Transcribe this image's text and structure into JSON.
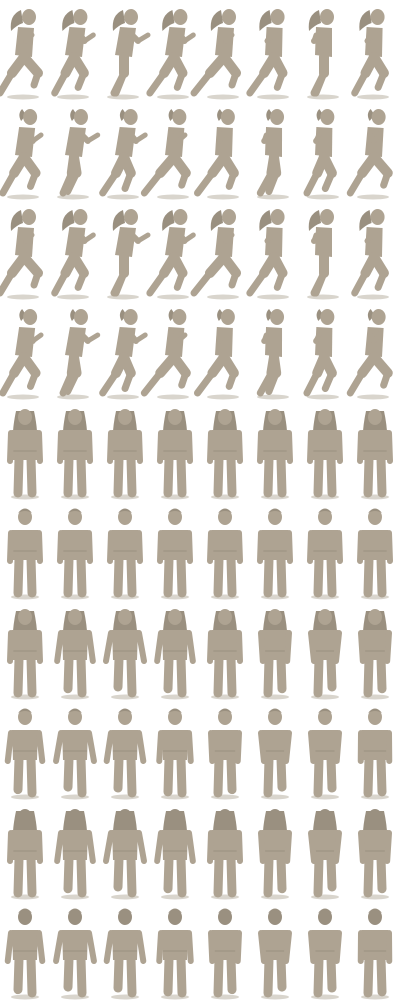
{
  "sprite_sheet": {
    "background": "#ffffff",
    "silhouette_color": "#aea392",
    "silhouette_shade": "#9a9080",
    "ground_shadow_color": "#d9d5cd",
    "columns": 8,
    "rows": [
      {
        "name": "run-side-long-hair",
        "pose": "run",
        "hair": "long",
        "frames": 8
      },
      {
        "name": "run-side-short-hair",
        "pose": "run",
        "hair": "short",
        "frames": 8
      },
      {
        "name": "run-side-long-hair-alt",
        "pose": "run",
        "hair": "long",
        "frames": 8
      },
      {
        "name": "run-side-short-hair-alt",
        "pose": "run",
        "hair": "short",
        "frames": 8
      },
      {
        "name": "idle-front-long-hair",
        "pose": "stand-front",
        "hair": "long",
        "frames": 8
      },
      {
        "name": "idle-front-short-hair",
        "pose": "stand-front",
        "hair": "short",
        "frames": 8
      },
      {
        "name": "walk-front-long-hair",
        "pose": "walk-front",
        "hair": "long",
        "frames": 8
      },
      {
        "name": "walk-front-short-hair",
        "pose": "walk-front",
        "hair": "short",
        "frames": 8
      },
      {
        "name": "walk-back-long-hair",
        "pose": "walk-back",
        "hair": "long",
        "frames": 8
      },
      {
        "name": "walk-back-short-hair",
        "pose": "walk-back",
        "hair": "short",
        "frames": 8
      }
    ]
  }
}
